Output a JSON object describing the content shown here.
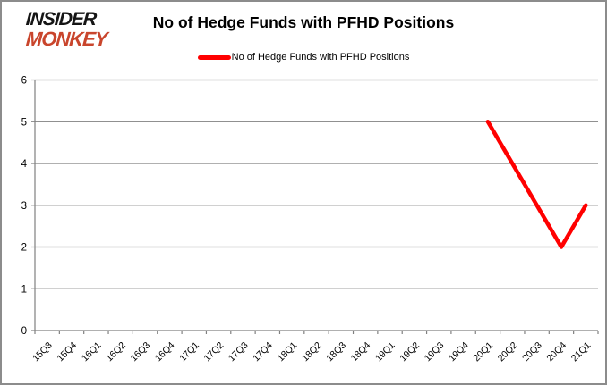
{
  "logo": {
    "line1": "INSIDER",
    "line2": "MONKEY",
    "line2_color": "#c9452c"
  },
  "header": {
    "title": "No of Hedge Funds with PFHD Positions"
  },
  "legend": {
    "label": "No of Hedge Funds with PFHD Positions",
    "swatch_color": "#ff0000"
  },
  "chart_data": {
    "type": "line",
    "title": "No of Hedge Funds with PFHD Positions",
    "categories": [
      "15Q3",
      "15Q4",
      "16Q1",
      "16Q2",
      "16Q3",
      "16Q4",
      "17Q1",
      "17Q2",
      "17Q3",
      "17Q4",
      "18Q1",
      "18Q2",
      "18Q3",
      "18Q4",
      "19Q1",
      "19Q2",
      "19Q3",
      "19Q4",
      "20Q1",
      "20Q2",
      "20Q3",
      "20Q4",
      "21Q1"
    ],
    "series": [
      {
        "name": "No of Hedge Funds with PFHD Positions",
        "color": "#ff0000",
        "values": [
          null,
          null,
          null,
          null,
          null,
          null,
          null,
          null,
          null,
          null,
          null,
          null,
          null,
          null,
          null,
          null,
          null,
          null,
          5,
          4,
          3,
          2,
          3
        ]
      }
    ],
    "xlabel": "",
    "ylabel": "",
    "ylim": [
      0,
      6
    ],
    "yticks": [
      0,
      1,
      2,
      3,
      4,
      5,
      6
    ],
    "grid": true,
    "legend_position": "top",
    "line_width": 4.5,
    "gridline_color": "#808080",
    "axis_color": "#808080",
    "tick_label_color": "#000000"
  }
}
